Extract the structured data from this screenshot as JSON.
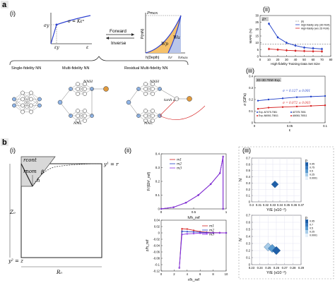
{
  "panel_a": {
    "label": "a",
    "sub_i": "(i)",
    "sub_ii": "(ii)",
    "sub_iii": "(iii)",
    "stress_strain": {
      "sigma_y": "σy",
      "eq": "σ = Kεⁿ",
      "eps_y": "εy",
      "eps": "ε"
    },
    "forward": "Forward",
    "inverse": "Inverse",
    "load_curve": {
      "pmax": "Pmax",
      "ylabel": "P(mN)",
      "xlabel": "h(Depth)",
      "hr": "hr",
      "hmax": "hmax",
      "wu": "Wu",
      "wp": "Wp"
    },
    "nn": {
      "single": "Single-fidelity NN",
      "multi": "Multi-fidelity NN",
      "residual": "Residual Multi-fidelity NN",
      "nnh": "NNH",
      "nnl": "NNL",
      "tanh_a": "tanh a",
      "in": "x",
      "out": "y"
    }
  },
  "panel_b": {
    "label": "b",
    "sub_i": "(i)",
    "sub_ii": "(ii)",
    "sub_iii": "(iii)",
    "geom": {
      "rcont": "rcont",
      "rnom": "rnom",
      "beta": "β",
      "h": "h",
      "z0": "Z₀",
      "r0": "R₀",
      "ytop": "y¹ = r",
      "ybot": "y² = z"
    }
  },
  "chart_data": [
    {
      "id": "a-ii",
      "type": "line",
      "title": "",
      "xlabel": "High-fidelity Training Data Set Size",
      "ylabel": "MAPE (%)",
      "xlim": [
        0,
        80
      ],
      "ylim": [
        0,
        30
      ],
      "xticks": [
        "0",
        "10",
        "20",
        "30",
        "40",
        "50",
        "60",
        "70",
        "80"
      ],
      "yticks": [
        "0",
        "5",
        "10",
        "15",
        "20",
        "25",
        "30"
      ],
      "box_label": "E*",
      "series": [
        {
          "name": "(b)",
          "color": "#999999",
          "dashed": true,
          "x": [
            0,
            80
          ],
          "y": [
            9,
            9
          ]
        },
        {
          "name": "High-fidelity only (3D FEM)",
          "color": "#1f3fc8",
          "x": [
            10,
            20,
            30,
            40,
            50,
            60,
            70
          ],
          "y": [
            24,
            14,
            10,
            8,
            6.5,
            6,
            5.5
          ]
        },
        {
          "name": "High-fidelity (w/o 2D FEM)",
          "color": "#d62020",
          "x": [
            10,
            20,
            30,
            40,
            50,
            60,
            70
          ],
          "y": [
            5.5,
            5,
            4.5,
            4.2,
            4,
            3.8,
            3.7
          ]
        }
      ]
    },
    {
      "id": "a-iii",
      "type": "scatter",
      "title": "",
      "xlabel": "ε",
      "ylabel": "σ (GPa)",
      "xlim": [
        0,
        0.1
      ],
      "ylim": [
        0,
        0.4
      ],
      "xticks": [
        "0",
        "0.05",
        "0.1"
      ],
      "yticks": [
        "0",
        "0.1",
        "0.2",
        "0.3",
        "0.4"
      ],
      "box_label": "2D+3D FEM+Exp.",
      "annotations": [
        "σ = 0.127 ± 0.001",
        "σ = 0.072 ± 0.003"
      ],
      "legend": [
        "Exp. Al7075-T651",
        "Al7075-T651",
        "Exp. Al6061-T6511",
        "Al6061-T6511"
      ],
      "series": [
        {
          "name": "Al7075-T651",
          "color": "#1f3fc8",
          "x": [
            0.005,
            0.02,
            0.04,
            0.06,
            0.08,
            0.1
          ],
          "y": [
            0.19,
            0.2,
            0.21,
            0.22,
            0.225,
            0.23
          ]
        },
        {
          "name": "Al6061-T6511",
          "color": "#d62020",
          "x": [
            0.005,
            0.02,
            0.04,
            0.06,
            0.08,
            0.1
          ],
          "y": [
            0.12,
            0.13,
            0.135,
            0.14,
            0.145,
            0.15
          ]
        }
      ]
    },
    {
      "id": "b-ii-top",
      "type": "line",
      "title": "",
      "xlabel": "h/h_ref",
      "ylabel": "F/(Eh²_ref)",
      "xlim": [
        0,
        1.05
      ],
      "ylim": [
        0,
        0.4
      ],
      "xticks": [
        "0",
        "0.5",
        "1"
      ],
      "yticks": [
        "0",
        "0.1",
        "0.2",
        "0.3",
        "0.4"
      ],
      "legend": [
        "m1",
        "m2",
        "m3"
      ],
      "series": [
        {
          "name": "m1",
          "color": "#d62020",
          "x": [
            0,
            0.2,
            0.4,
            0.6,
            0.8,
            0.95,
            1.0,
            1.0
          ],
          "y": [
            0,
            0.012,
            0.045,
            0.1,
            0.18,
            0.26,
            0.38,
            0
          ]
        },
        {
          "name": "m2",
          "color": "#1f3fc8",
          "x": [
            0,
            0.2,
            0.4,
            0.6,
            0.8,
            0.95,
            1.0,
            1.0
          ],
          "y": [
            0,
            0.012,
            0.045,
            0.1,
            0.18,
            0.26,
            0.38,
            0
          ]
        },
        {
          "name": "m3",
          "color": "#8a2be2",
          "x": [
            0,
            0.2,
            0.4,
            0.6,
            0.8,
            0.95,
            1.0,
            1.0
          ],
          "y": [
            0,
            0.012,
            0.045,
            0.1,
            0.18,
            0.26,
            0.38,
            0
          ]
        }
      ]
    },
    {
      "id": "b-ii-bottom",
      "type": "line",
      "title": "",
      "xlabel": "r/h_ref",
      "ylabel": "z/h_ref",
      "xlim": [
        0,
        10
      ],
      "ylim": [
        -0.12,
        0.04
      ],
      "xticks": [
        "0",
        "2",
        "4",
        "6",
        "8",
        "10"
      ],
      "yticks": [
        "-0.12",
        "-0.1",
        "-0.08",
        "-0.06",
        "-0.04",
        "-0.02",
        "0",
        "0.02",
        "0.04"
      ],
      "legend": [
        "m1",
        "m2",
        "m3"
      ],
      "series": [
        {
          "name": "m1",
          "color": "#d62020",
          "x": [
            2.8,
            3.2,
            4,
            5,
            6,
            7,
            8,
            9,
            10
          ],
          "y": [
            -0.11,
            0.013,
            0.012,
            0.008,
            0.004,
            0.002,
            0.001,
            0.0005,
            0
          ]
        },
        {
          "name": "m2",
          "color": "#1f3fc8",
          "x": [
            2.8,
            3.2,
            4,
            5,
            6,
            7,
            8,
            9,
            10
          ],
          "y": [
            -0.11,
            0.005,
            0.004,
            0.003,
            0.002,
            0.001,
            0.0005,
            0.0002,
            0
          ]
        },
        {
          "name": "m3",
          "color": "#8a2be2",
          "x": [
            2.8,
            3.2,
            4,
            5,
            6,
            7,
            8,
            9,
            10
          ],
          "y": [
            -0.11,
            -0.005,
            -0.003,
            -0.002,
            -0.001,
            -0.0005,
            -0.0002,
            0,
            0
          ]
        }
      ]
    },
    {
      "id": "b-iii-top",
      "type": "heatmap",
      "title": "",
      "xlabel": "Y/E (x10⁻²)",
      "ylabel": "N",
      "xlim": [
        0.3,
        0.37
      ],
      "ylim": [
        0,
        0.7
      ],
      "xticks": [
        "0.3",
        "0.31",
        "0.32",
        "0.33",
        "0.34",
        "0.35",
        "0.36",
        "0.37"
      ],
      "yticks": [
        "0",
        "0.1",
        "0.2",
        "0.3",
        "0.4",
        "0.5",
        "0.6",
        "0.7"
      ],
      "colorbar_title": "p",
      "colorbar_ticks": [
        "0.95",
        "0.75",
        "0.5",
        "0.25",
        "0.0001"
      ],
      "cells": [
        {
          "x": 0.333,
          "y": 0.28,
          "p": 0.95
        }
      ]
    },
    {
      "id": "b-iii-bottom",
      "type": "heatmap",
      "title": "",
      "xlabel": "Y/E (x10⁻²)",
      "ylabel": "N",
      "xlim": [
        0.23,
        0.29
      ],
      "ylim": [
        0,
        0.7
      ],
      "xticks": [
        "0.23",
        "0.24",
        "0.25",
        "0.26",
        "0.27",
        "0.28",
        "0.29"
      ],
      "yticks": [
        "0",
        "0.1",
        "0.2",
        "0.3",
        "0.4",
        "0.5",
        "0.6",
        "0.7"
      ],
      "colorbar_title": "p",
      "colorbar_ticks": [
        "0.95",
        "0.7",
        "0.5",
        "0.25",
        "0.0001"
      ],
      "cells": [
        {
          "x": 0.25,
          "y": 0.25,
          "p": 0.5
        },
        {
          "x": 0.255,
          "y": 0.23,
          "p": 0.8
        },
        {
          "x": 0.26,
          "y": 0.2,
          "p": 0.95
        }
      ]
    }
  ]
}
